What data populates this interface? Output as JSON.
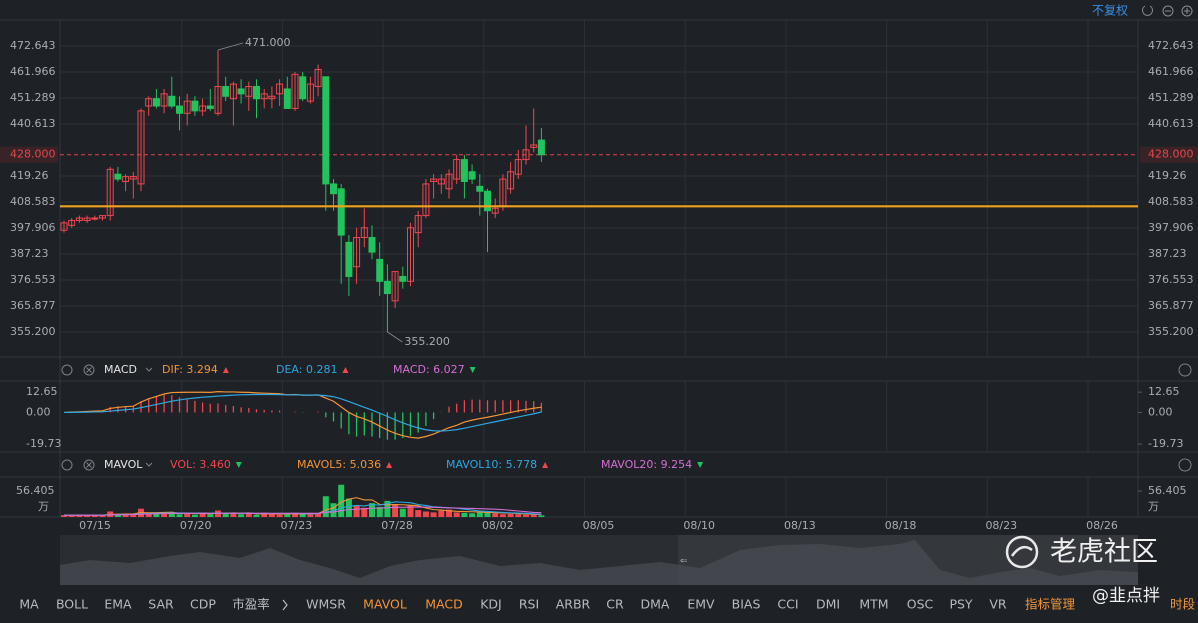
{
  "toolbar": {
    "adjust": "不复权"
  },
  "chart_data": [
    {
      "type": "candlestick",
      "x_labels": [
        "07/15",
        "07/20",
        "07/23",
        "07/28",
        "08/02",
        "08/05",
        "08/10",
        "08/13",
        "08/18",
        "08/23",
        "08/26"
      ],
      "open": [
        397,
        399,
        401,
        401,
        402,
        402,
        403,
        420,
        417,
        418,
        416,
        448,
        451,
        448,
        452,
        448,
        445,
        450,
        446,
        448,
        445,
        456,
        451,
        455,
        452,
        456,
        451,
        451,
        453,
        455,
        447,
        460,
        450,
        456,
        460,
        416,
        414,
        392,
        382,
        394,
        394,
        385,
        376,
        368,
        378,
        376,
        396,
        403,
        417,
        416,
        414,
        418,
        426,
        421,
        415,
        413,
        404,
        407,
        414,
        420,
        426,
        431,
        434
      ],
      "high": [
        401,
        402,
        403,
        403,
        403,
        403,
        423,
        423,
        420,
        421,
        447,
        452,
        455,
        455,
        460,
        452,
        453,
        452,
        451,
        455,
        471,
        460,
        458,
        459,
        458,
        459,
        455,
        456,
        459,
        460,
        462,
        462,
        460,
        465,
        460,
        418,
        416,
        395,
        398,
        406,
        399,
        392,
        383,
        380,
        382,
        400,
        405,
        418,
        420,
        420,
        422,
        428,
        428,
        424,
        420,
        414,
        410,
        420,
        425,
        430,
        440,
        447,
        439
      ],
      "low": [
        396,
        398,
        400,
        400,
        401,
        401,
        401,
        417,
        413,
        410,
        413,
        444,
        447,
        445,
        447,
        438,
        440,
        444,
        444,
        446,
        444,
        450,
        440,
        449,
        446,
        443,
        447,
        447,
        448,
        448,
        446,
        450,
        449,
        452,
        405,
        405,
        375,
        370,
        375,
        390,
        385,
        370,
        355.2,
        365,
        373,
        374,
        390,
        402,
        410,
        412,
        410,
        416,
        410,
        416,
        403,
        388,
        402,
        405,
        412,
        418,
        424,
        429,
        425
      ],
      "close": [
        400,
        401,
        402,
        402,
        402,
        403,
        422,
        418,
        419,
        419,
        446,
        451,
        448,
        453,
        448,
        445,
        450,
        446,
        448,
        447,
        456,
        452,
        457,
        453,
        456,
        451,
        453,
        452,
        457,
        447,
        461,
        451,
        457,
        463,
        416,
        412,
        395,
        378,
        394,
        398,
        388,
        376,
        371,
        380,
        376,
        398,
        403,
        416,
        418,
        418,
        420,
        426,
        417,
        418,
        413,
        405,
        406,
        418,
        421,
        426,
        430,
        432,
        428
      ],
      "up_color": "#f0474f",
      "down_color": "#22c25d",
      "ylim": [
        344.93,
        483.32
      ],
      "yticks": [
        472.643,
        461.966,
        451.289,
        440.613,
        419.26,
        408.583,
        397.906,
        387.23,
        376.553,
        365.877,
        {
          "value": 355.2,
          "label": "355.200"
        }
      ],
      "grid": true,
      "last_price": {
        "value": 428,
        "label": "428.000",
        "color": "#e0474e"
      },
      "hline": {
        "value": 406.8,
        "color": "#f0a21e"
      },
      "annotations": [
        {
          "value": 471,
          "label": "471.000"
        },
        {
          "value": 355.2,
          "label": "355.200"
        }
      ]
    },
    {
      "type": "macd",
      "name": "MACD",
      "series": [
        {
          "label": "DIF: 3.294",
          "trend": "up",
          "color": "#f3953a",
          "values": [
            0,
            0.2,
            0.4,
            0.6,
            0.8,
            1,
            2.5,
            3.2,
            3.6,
            3.9,
            6.5,
            8.5,
            10,
            11.5,
            12.4,
            12.5,
            12.6,
            12.6,
            12.6,
            12.5,
            13,
            12.8,
            12.8,
            12.6,
            12.5,
            12.2,
            12,
            11.8,
            11.7,
            11,
            11.2,
            10.8,
            10.8,
            11,
            9,
            7,
            3.5,
            0,
            -2.5,
            -4,
            -6,
            -8.5,
            -11,
            -13,
            -14.5,
            -15.5,
            -16,
            -15,
            -13.5,
            -11.5,
            -9.5,
            -8,
            -6,
            -4.8,
            -3.8,
            -3,
            -2,
            -1,
            0,
            1,
            1.8,
            2.6,
            3.294
          ]
        },
        {
          "label": "DEA: 0.281",
          "trend": "up",
          "color": "#2fa7e0",
          "values": [
            0,
            0.05,
            0.1,
            0.2,
            0.3,
            0.4,
            0.8,
            1.3,
            1.7,
            2.1,
            3,
            4,
            5,
            6,
            7,
            7.8,
            8.5,
            9,
            9.5,
            9.8,
            10.2,
            10.5,
            10.8,
            11,
            11.1,
            11.2,
            11.2,
            11.2,
            11.1,
            11,
            11,
            10.9,
            10.8,
            10.8,
            10.5,
            9.8,
            8.5,
            6.8,
            5,
            3.2,
            1.5,
            -0.5,
            -2.5,
            -4.5,
            -6.5,
            -8.2,
            -9.7,
            -10.8,
            -11.4,
            -11.6,
            -11.3,
            -10.7,
            -9.8,
            -8.8,
            -7.8,
            -6.8,
            -5.8,
            -4.8,
            -3.8,
            -2.8,
            -1.8,
            -0.9,
            0.281
          ]
        },
        {
          "label": "MACD: 6.027",
          "trend": "down",
          "kind": "histogram",
          "color": "#d46fd6",
          "values": [
            0,
            0.3,
            0.6,
            0.8,
            1,
            1.2,
            3.4,
            3.8,
            3.8,
            3.6,
            7,
            9,
            10,
            11,
            10.8,
            9.4,
            8.2,
            7.2,
            6.2,
            5.4,
            5.6,
            4.6,
            4,
            3.2,
            2.8,
            2,
            1.6,
            1.2,
            1.2,
            0,
            0.4,
            -0.2,
            0,
            0.4,
            -3,
            -5.6,
            -10,
            -13.6,
            -15,
            -14.4,
            -15,
            -16,
            -17,
            -17,
            -16,
            -14.6,
            -12.6,
            -8.4,
            -4.2,
            0.2,
            3.6,
            5.4,
            7.6,
            8,
            8,
            7.6,
            7.6,
            7.6,
            7.6,
            7.6,
            7.2,
            7,
            6.027
          ]
        }
      ],
      "ylim": [
        -24.67,
        19.61
      ],
      "yticks": [
        12.65,
        {
          "value": 0,
          "label": "0.00"
        },
        -19.73
      ]
    },
    {
      "type": "volume",
      "name": "MAVOL",
      "unit": "万",
      "series": [
        {
          "label": "VOL: 3.460",
          "trend": "down",
          "kind": "bar",
          "color": "#f0474f",
          "values": [
            4,
            3,
            5,
            4,
            4,
            3,
            12,
            6,
            5,
            7,
            18,
            9,
            8,
            7,
            10,
            6,
            9,
            5,
            8,
            6,
            14,
            9,
            7,
            6,
            8,
            5,
            9,
            6,
            5,
            8,
            7,
            6,
            9,
            8,
            45,
            30,
            70,
            40,
            25,
            20,
            30,
            22,
            35,
            28,
            18,
            25,
            15,
            12,
            10,
            14,
            16,
            10,
            9,
            8,
            12,
            10,
            8,
            6,
            7,
            6,
            5,
            6,
            3.46
          ]
        },
        {
          "label": "MAVOL5: 5.036",
          "trend": "up",
          "color": "#f3953a",
          "values": [
            4,
            4,
            4,
            4,
            4,
            4,
            5.6,
            6,
            6.4,
            6.8,
            9.6,
            9,
            9.4,
            9.8,
            10.4,
            8,
            8,
            7.4,
            7.6,
            6.8,
            8.4,
            8.4,
            8.8,
            8.4,
            8.8,
            7,
            7,
            6.8,
            6.6,
            7,
            7,
            6.4,
            7,
            7.6,
            15,
            19.6,
            32.4,
            38.6,
            42,
            37,
            37,
            27.4,
            26.4,
            27,
            26.6,
            25.6,
            24.2,
            19.6,
            16,
            15.2,
            13.4,
            12.4,
            11.8,
            11.4,
            11,
            9.8,
            9.4,
            8.8,
            8.6,
            7.4,
            6.6,
            6,
            5.036
          ]
        },
        {
          "label": "MAVOL10: 5.778",
          "trend": "up",
          "color": "#2fa7e0",
          "values": [
            4,
            4,
            4,
            4,
            4,
            4,
            5,
            5,
            5.2,
            5.5,
            7,
            7.5,
            8,
            8.3,
            8.6,
            8.8,
            8.7,
            8.4,
            8.6,
            8.3,
            8.6,
            8.2,
            8.1,
            7.9,
            8.1,
            7.7,
            7.7,
            7.6,
            7.7,
            7.7,
            7.7,
            7.2,
            7,
            7.3,
            11,
            13,
            20,
            23,
            25,
            24,
            27,
            26,
            29,
            33,
            32,
            31,
            27,
            25,
            22,
            21,
            20,
            19,
            17,
            15,
            13,
            12,
            11,
            10,
            9,
            8.5,
            8,
            7,
            5.778
          ]
        },
        {
          "label": "MAVOL20: 9.254",
          "trend": "down",
          "color": "#d46fd6",
          "values": [
            4,
            4,
            4,
            4,
            4,
            4,
            4.6,
            4.8,
            5,
            5.2,
            6,
            6.5,
            7,
            7.3,
            7.6,
            7.8,
            8,
            8,
            8.2,
            8,
            8.2,
            8.1,
            8.2,
            8.1,
            8.3,
            8,
            8.2,
            8,
            8.1,
            8,
            8.2,
            8,
            7.9,
            8,
            10,
            11,
            14,
            16,
            17,
            18,
            19,
            19.5,
            20,
            21,
            21,
            21.5,
            21.5,
            21.5,
            21,
            20.5,
            20,
            19.5,
            19,
            18.5,
            18,
            17.5,
            17,
            16,
            14.5,
            13,
            11.5,
            10,
            9.254
          ]
        }
      ],
      "ylim": [
        0,
        80.27
      ],
      "yticks": [
        56.405
      ]
    }
  ],
  "indicator_bar": {
    "tabs": [
      {
        "label": "MA"
      },
      {
        "label": "BOLL"
      },
      {
        "label": "EMA"
      },
      {
        "label": "SAR"
      },
      {
        "label": "CDP"
      },
      {
        "label": "市盈率"
      },
      {
        "label": "WMSR"
      },
      {
        "label": "MAVOL",
        "active": true
      },
      {
        "label": "MACD",
        "active": true
      },
      {
        "label": "KDJ"
      },
      {
        "label": "RSI"
      },
      {
        "label": "ARBR"
      },
      {
        "label": "CR"
      },
      {
        "label": "DMA"
      },
      {
        "label": "EMV"
      },
      {
        "label": "BIAS"
      },
      {
        "label": "CCI"
      },
      {
        "label": "DMI"
      },
      {
        "label": "MTM"
      },
      {
        "label": "OSC"
      },
      {
        "label": "PSY"
      },
      {
        "label": "VR"
      }
    ],
    "manage": "指标管理",
    "period": "时段"
  },
  "watermark": {
    "brand": "老虎社区",
    "author": "@韭点拌"
  }
}
